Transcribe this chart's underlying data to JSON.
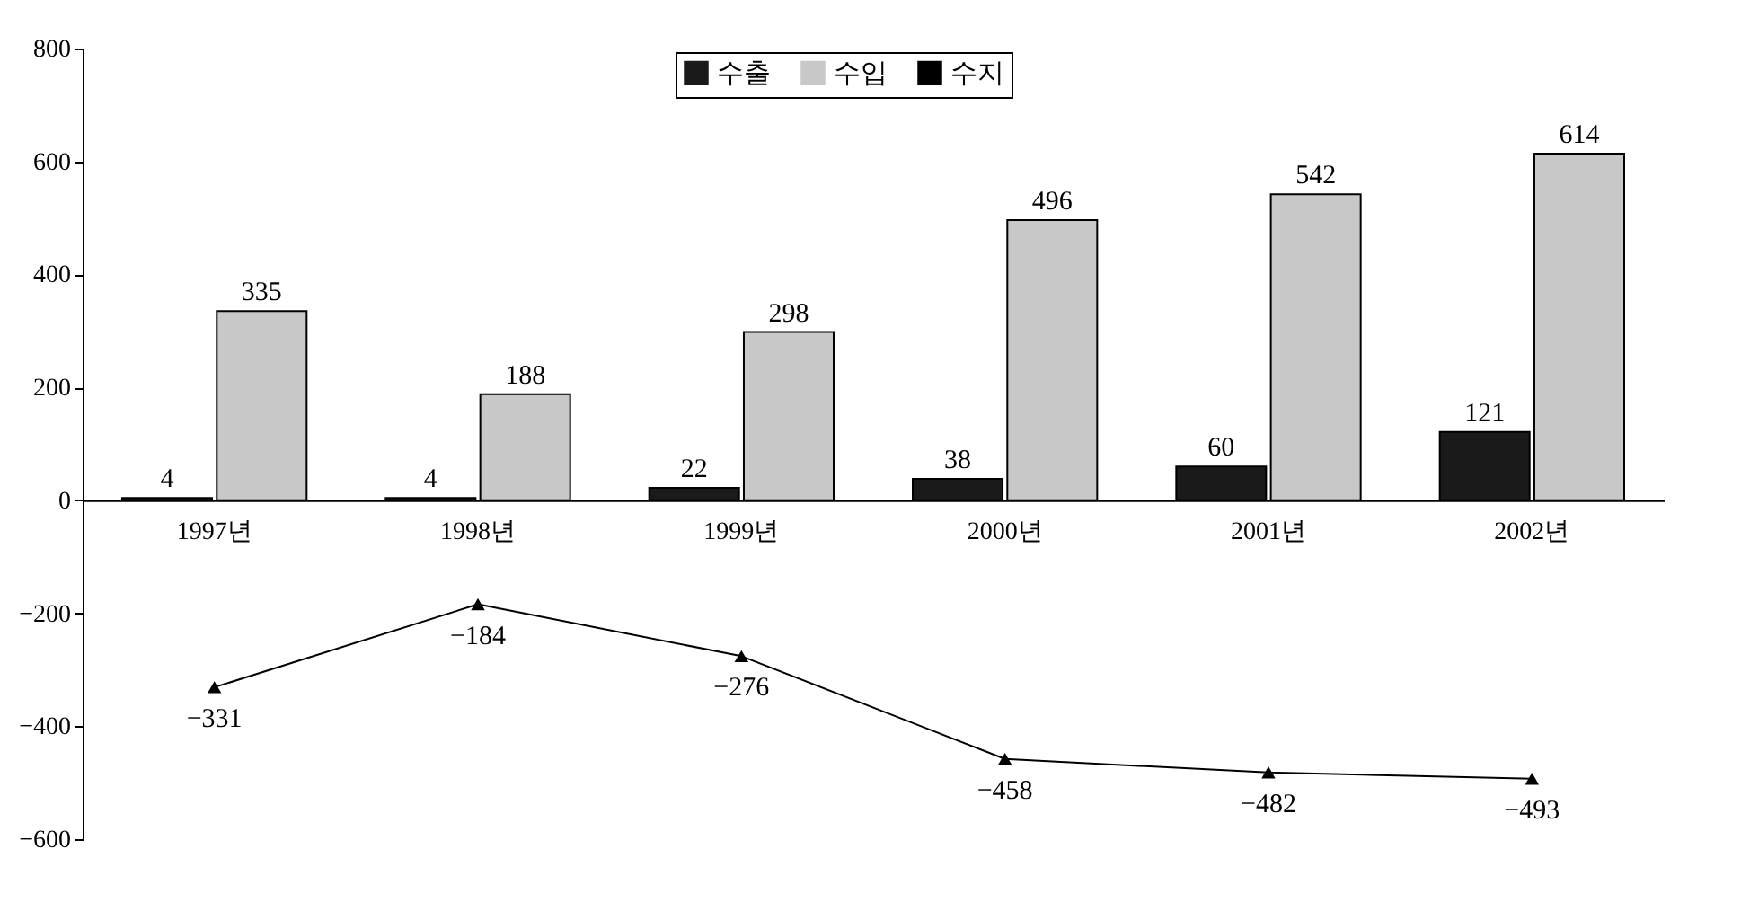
{
  "chart_data": {
    "type": "bar",
    "categories": [
      "1997년",
      "1998년",
      "1999년",
      "2000년",
      "2001년",
      "2002년"
    ],
    "series": [
      {
        "name": "수출",
        "color": "#1a1a1a",
        "values": [
          4,
          4,
          22,
          38,
          60,
          121
        ]
      },
      {
        "name": "수입",
        "color": "#c8c8c8",
        "values": [
          335,
          188,
          298,
          496,
          542,
          614
        ]
      },
      {
        "name": "수지",
        "type": "line",
        "color": "#000000",
        "marker": "triangle",
        "values": [
          -331,
          -184,
          -276,
          -458,
          -482,
          -493
        ]
      }
    ],
    "ylim": [
      -600,
      800
    ],
    "yticks": [
      -600,
      -400,
      -200,
      0,
      200,
      400,
      600,
      800
    ],
    "data_labels": true,
    "legend": "top",
    "grid": false
  }
}
